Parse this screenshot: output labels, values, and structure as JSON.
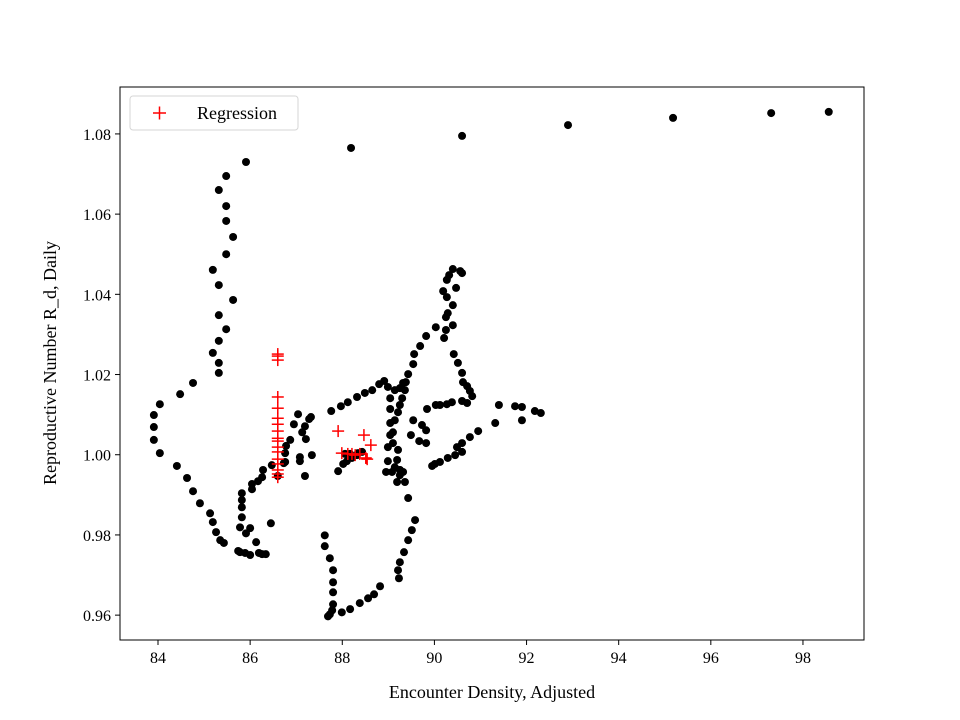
{
  "chart_data": {
    "type": "scatter",
    "xlabel": "Encounter Density, Adjusted",
    "ylabel": "Reproductive Number R_d, Daily",
    "xlim": [
      83.175,
      99.325
    ],
    "ylim": [
      0.9538,
      1.0917
    ],
    "xticks": [
      84,
      86,
      88,
      90,
      92,
      94,
      96,
      98
    ],
    "yticks": [
      0.96,
      0.98,
      1.0,
      1.02,
      1.04,
      1.06,
      1.08
    ],
    "ytick_labels": [
      "0.96",
      "0.98",
      "1.00",
      "1.02",
      "1.04",
      "1.06",
      "1.08"
    ],
    "grid": false,
    "legend": {
      "placement": "top-left",
      "entries": [
        "Regression"
      ]
    },
    "series": [
      {
        "color": "#000000",
        "marker": "circle",
        "points": [
          [
            88.19,
            1.0765
          ],
          [
            90.6,
            1.0795
          ],
          [
            92.9,
            1.0822
          ],
          [
            95.18,
            1.084
          ],
          [
            97.31,
            1.0852
          ],
          [
            98.56,
            1.0855
          ],
          [
            85.91,
            1.073
          ],
          [
            85.48,
            1.0695
          ],
          [
            85.32,
            1.066
          ],
          [
            85.48,
            1.062
          ],
          [
            85.48,
            1.0583
          ],
          [
            85.63,
            1.0543
          ],
          [
            85.48,
            1.05
          ],
          [
            85.19,
            1.0461
          ],
          [
            85.32,
            1.0423
          ],
          [
            85.63,
            1.0386
          ],
          [
            85.32,
            1.0348
          ],
          [
            85.48,
            1.0313
          ],
          [
            85.32,
            1.0284
          ],
          [
            85.19,
            1.0254
          ],
          [
            85.32,
            1.0229
          ],
          [
            85.32,
            1.0204
          ],
          [
            84.76,
            1.0179
          ],
          [
            84.48,
            1.0151
          ],
          [
            84.04,
            1.0126
          ],
          [
            83.91,
            1.0099
          ],
          [
            83.91,
            1.0069
          ],
          [
            83.91,
            1.0037
          ],
          [
            84.04,
            1.0004
          ],
          [
            84.41,
            0.9972
          ],
          [
            84.63,
            0.9942
          ],
          [
            84.76,
            0.9909
          ],
          [
            84.91,
            0.9879
          ],
          [
            85.13,
            0.9854
          ],
          [
            85.19,
            0.9832
          ],
          [
            85.26,
            0.9807
          ],
          [
            85.35,
            0.9787
          ],
          [
            85.43,
            0.978
          ],
          [
            85.74,
            0.976
          ],
          [
            85.78,
            0.9757
          ],
          [
            85.89,
            0.9755
          ],
          [
            86.0,
            0.975
          ],
          [
            85.82,
            0.9904
          ],
          [
            85.82,
            0.9887
          ],
          [
            85.82,
            0.9869
          ],
          [
            85.82,
            0.9844
          ],
          [
            85.78,
            0.9819
          ],
          [
            86.0,
            0.9817
          ],
          [
            85.91,
            0.9804
          ],
          [
            86.13,
            0.9782
          ],
          [
            86.19,
            0.9755
          ],
          [
            86.26,
            0.9752
          ],
          [
            86.34,
            0.9752
          ],
          [
            86.04,
            0.9914
          ],
          [
            86.04,
            0.9927
          ],
          [
            86.17,
            0.9934
          ],
          [
            86.26,
            0.9944
          ],
          [
            86.28,
            0.9962
          ],
          [
            86.47,
            0.9974
          ],
          [
            86.6,
            0.9947
          ],
          [
            86.76,
            0.9982
          ],
          [
            87.08,
            0.9994
          ],
          [
            87.21,
            1.0039
          ],
          [
            87.13,
            1.0056
          ],
          [
            87.19,
            1.0071
          ],
          [
            87.28,
            1.0089
          ],
          [
            87.32,
            1.0094
          ],
          [
            87.34,
            0.9999
          ],
          [
            86.76,
            1.0004
          ],
          [
            86.73,
            0.9979
          ],
          [
            86.78,
            1.0022
          ],
          [
            86.87,
            1.0037
          ],
          [
            86.95,
            1.0076
          ],
          [
            87.04,
            1.0101
          ],
          [
            87.08,
            0.9984
          ],
          [
            87.19,
            0.9947
          ],
          [
            86.45,
            0.9829
          ],
          [
            87.76,
            1.0109
          ],
          [
            87.97,
            1.0121
          ],
          [
            88.12,
            1.0131
          ],
          [
            88.32,
            1.0144
          ],
          [
            88.49,
            1.0154
          ],
          [
            88.65,
            1.0161
          ],
          [
            88.8,
            1.0176
          ],
          [
            88.91,
            1.0184
          ],
          [
            88.06,
            1.0002
          ],
          [
            88.17,
            1.0002
          ],
          [
            88.34,
            1.0004
          ],
          [
            88.43,
            1.0007
          ],
          [
            87.91,
            0.9959
          ],
          [
            88.02,
            0.9977
          ],
          [
            88.1,
            0.9984
          ],
          [
            88.21,
            0.9992
          ],
          [
            88.32,
            0.9999
          ],
          [
            88.99,
            1.0169
          ],
          [
            89.14,
            1.0161
          ],
          [
            89.04,
            1.0141
          ],
          [
            89.04,
            1.0114
          ],
          [
            89.04,
            1.0079
          ],
          [
            89.04,
            1.0049
          ],
          [
            88.99,
            1.0019
          ],
          [
            88.99,
            0.9984
          ],
          [
            89.14,
            0.9969
          ],
          [
            89.25,
            0.9962
          ],
          [
            88.95,
            0.9957
          ],
          [
            89.49,
            1.0049
          ],
          [
            89.67,
            1.0034
          ],
          [
            89.82,
            1.0029
          ],
          [
            89.36,
            0.9932
          ],
          [
            89.43,
            0.9892
          ],
          [
            89.58,
            0.9837
          ],
          [
            89.51,
            0.9812
          ],
          [
            89.43,
            0.9787
          ],
          [
            89.34,
            0.9757
          ],
          [
            89.25,
            0.9732
          ],
          [
            89.21,
            0.9712
          ],
          [
            89.23,
            0.9692
          ],
          [
            88.82,
            0.9672
          ],
          [
            88.69,
            0.9652
          ],
          [
            88.56,
            0.9642
          ],
          [
            88.38,
            0.963
          ],
          [
            88.17,
            0.9615
          ],
          [
            87.99,
            0.9607
          ],
          [
            87.73,
            0.9602
          ],
          [
            87.69,
            0.9597
          ],
          [
            87.62,
            0.9799
          ],
          [
            87.62,
            0.9772
          ],
          [
            87.73,
            0.9742
          ],
          [
            87.8,
            0.9712
          ],
          [
            87.8,
            0.9682
          ],
          [
            87.8,
            0.9657
          ],
          [
            87.8,
            0.9627
          ],
          [
            87.78,
            0.9612
          ],
          [
            90.4,
            1.0463
          ],
          [
            90.6,
            1.0453
          ],
          [
            90.56,
            1.0458
          ],
          [
            90.27,
            1.0436
          ],
          [
            90.32,
            1.0448
          ],
          [
            90.19,
            1.0408
          ],
          [
            90.47,
            1.0416
          ],
          [
            90.27,
            1.0393
          ],
          [
            90.4,
            1.0373
          ],
          [
            90.29,
            1.0353
          ],
          [
            90.25,
            1.0343
          ],
          [
            90.4,
            1.0323
          ],
          [
            90.25,
            1.0311
          ],
          [
            90.21,
            1.0291
          ],
          [
            90.03,
            1.0318
          ],
          [
            89.82,
            1.0296
          ],
          [
            89.69,
            1.0271
          ],
          [
            89.56,
            1.0251
          ],
          [
            89.54,
            1.0226
          ],
          [
            89.43,
            1.0201
          ],
          [
            89.38,
            1.0181
          ],
          [
            89.25,
            1.0166
          ],
          [
            89.32,
            1.0179
          ],
          [
            89.36,
            1.0161
          ],
          [
            89.3,
            1.0141
          ],
          [
            89.25,
            1.0124
          ],
          [
            89.21,
            1.0106
          ],
          [
            89.14,
            1.0086
          ],
          [
            89.1,
            1.0056
          ],
          [
            89.1,
            1.0029
          ],
          [
            89.21,
            1.0012
          ],
          [
            89.19,
            0.9987
          ],
          [
            89.25,
            0.9962
          ],
          [
            89.25,
            0.9949
          ],
          [
            89.32,
            0.9957
          ],
          [
            89.08,
            0.9957
          ],
          [
            89.19,
            0.9932
          ],
          [
            89.54,
            1.0086
          ],
          [
            89.73,
            1.0074
          ],
          [
            89.82,
            1.0061
          ],
          [
            89.84,
            1.0114
          ],
          [
            90.03,
            1.0124
          ],
          [
            90.27,
            1.0126
          ],
          [
            90.38,
            1.0131
          ],
          [
            90.6,
            1.0134
          ],
          [
            90.71,
            1.0129
          ],
          [
            90.12,
            1.0124
          ],
          [
            90.42,
            1.0251
          ],
          [
            90.51,
            1.0229
          ],
          [
            90.6,
            1.0204
          ],
          [
            90.62,
            1.0181
          ],
          [
            90.71,
            1.0171
          ],
          [
            90.77,
            1.0159
          ],
          [
            90.82,
            1.0146
          ],
          [
            91.4,
            1.0124
          ],
          [
            91.75,
            1.0121
          ],
          [
            91.9,
            1.0119
          ],
          [
            92.18,
            1.0109
          ],
          [
            92.31,
            1.0104
          ],
          [
            91.9,
            1.0086
          ],
          [
            91.32,
            1.0079
          ],
          [
            90.95,
            1.0059
          ],
          [
            90.77,
            1.0044
          ],
          [
            90.6,
            1.0029
          ],
          [
            90.49,
            1.0019
          ],
          [
            90.6,
            1.0007
          ],
          [
            90.45,
            0.9999
          ],
          [
            90.29,
            0.9992
          ],
          [
            90.12,
            0.9982
          ],
          [
            90.01,
            0.9977
          ],
          [
            89.95,
            0.9972
          ]
        ]
      },
      {
        "name": "Regression",
        "color": "#ff0000",
        "marker": "plus",
        "points": [
          [
            86.6,
            1.0251
          ],
          [
            86.6,
            1.0246
          ],
          [
            86.6,
            1.0236
          ],
          [
            86.6,
            1.0144
          ],
          [
            86.6,
            1.0116
          ],
          [
            86.6,
            1.0091
          ],
          [
            86.6,
            1.0076
          ],
          [
            86.6,
            1.0059
          ],
          [
            86.6,
            1.0041
          ],
          [
            86.6,
            1.0034
          ],
          [
            86.6,
            1.0019
          ],
          [
            86.6,
            1.0007
          ],
          [
            86.6,
            0.9989
          ],
          [
            86.6,
            0.9977
          ],
          [
            86.6,
            0.9962
          ],
          [
            86.6,
            0.9952
          ],
          [
            86.6,
            0.9944
          ],
          [
            87.91,
            1.0059
          ],
          [
            88.47,
            1.0049
          ],
          [
            88.62,
            1.0024
          ],
          [
            88.54,
            0.9989
          ],
          [
            87.99,
            1.0004
          ],
          [
            88.12,
            1.0002
          ],
          [
            88.21,
            1.0002
          ],
          [
            88.38,
            1.0002
          ],
          [
            88.51,
            0.9992
          ],
          [
            88.28,
            0.9999
          ]
        ]
      }
    ]
  }
}
